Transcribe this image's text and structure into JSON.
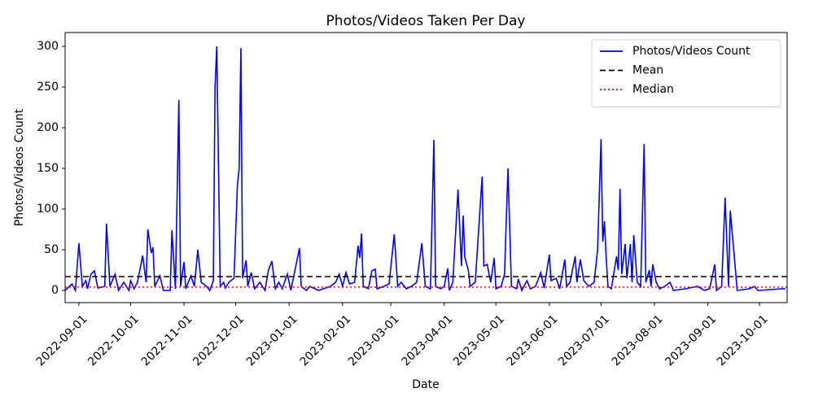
{
  "chart_data": {
    "type": "line",
    "title": "Photos/Videos Taken Per Day",
    "x_label": "Date",
    "y_label": "Photos/Videos Count",
    "xlim": [
      "2022-08-24",
      "2023-10-17"
    ],
    "xticks": [
      "2022-09-01",
      "2022-10-01",
      "2022-11-01",
      "2022-12-01",
      "2023-01-01",
      "2023-02-01",
      "2023-03-01",
      "2023-04-01",
      "2023-05-01",
      "2023-06-01",
      "2023-07-01",
      "2023-08-01",
      "2023-09-01",
      "2023-10-01"
    ],
    "ylim": [
      -15,
      317
    ],
    "yticks": [
      0,
      50,
      100,
      150,
      200,
      250,
      300
    ],
    "legend": "upper right",
    "x": [
      "2022-08-24",
      "2022-08-28",
      "2022-08-30",
      "2022-08-31",
      "2022-09-01",
      "2022-09-03",
      "2022-09-05",
      "2022-09-06",
      "2022-09-08",
      "2022-09-10",
      "2022-09-12",
      "2022-09-16",
      "2022-09-17",
      "2022-09-19",
      "2022-09-22",
      "2022-09-24",
      "2022-09-27",
      "2022-09-30",
      "2022-10-01",
      "2022-10-03",
      "2022-10-05",
      "2022-10-08",
      "2022-10-10",
      "2022-10-11",
      "2022-10-13",
      "2022-10-14",
      "2022-10-15",
      "2022-10-18",
      "2022-10-20",
      "2022-10-24",
      "2022-10-25",
      "2022-10-27",
      "2022-10-29",
      "2022-10-30",
      "2022-11-01",
      "2022-11-02",
      "2022-11-05",
      "2022-11-07",
      "2022-11-09",
      "2022-11-11",
      "2022-11-14",
      "2022-11-16",
      "2022-11-18",
      "2022-11-19",
      "2022-11-20",
      "2022-11-22",
      "2022-11-24",
      "2022-11-25",
      "2022-11-27",
      "2022-11-30",
      "2022-12-02",
      "2022-12-03",
      "2022-12-04",
      "2022-12-05",
      "2022-12-07",
      "2022-12-08",
      "2022-12-10",
      "2022-12-12",
      "2022-12-15",
      "2022-12-18",
      "2022-12-20",
      "2022-12-22",
      "2022-12-24",
      "2022-12-26",
      "2022-12-28",
      "2022-12-31",
      "2023-01-02",
      "2023-01-07",
      "2023-01-08",
      "2023-01-11",
      "2023-01-13",
      "2023-01-18",
      "2023-01-25",
      "2023-01-28",
      "2023-01-30",
      "2023-02-01",
      "2023-02-03",
      "2023-02-05",
      "2023-02-08",
      "2023-02-10",
      "2023-02-11",
      "2023-02-12",
      "2023-02-13",
      "2023-02-16",
      "2023-02-18",
      "2023-02-20",
      "2023-02-21",
      "2023-02-25",
      "2023-02-28",
      "2023-03-03",
      "2023-03-05",
      "2023-03-07",
      "2023-03-10",
      "2023-03-13",
      "2023-03-16",
      "2023-03-19",
      "2023-03-21",
      "2023-03-24",
      "2023-03-26",
      "2023-03-27",
      "2023-03-30",
      "2023-04-01",
      "2023-04-03",
      "2023-04-04",
      "2023-04-06",
      "2023-04-09",
      "2023-04-11",
      "2023-04-12",
      "2023-04-13",
      "2023-04-15",
      "2023-04-16",
      "2023-04-19",
      "2023-04-23",
      "2023-04-24",
      "2023-04-26",
      "2023-04-27",
      "2023-04-28",
      "2023-04-30",
      "2023-05-01",
      "2023-05-04",
      "2023-05-06",
      "2023-05-08",
      "2023-05-10",
      "2023-05-13",
      "2023-05-14",
      "2023-05-16",
      "2023-05-19",
      "2023-05-21",
      "2023-05-24",
      "2023-05-27",
      "2023-05-29",
      "2023-06-01",
      "2023-06-02",
      "2023-06-05",
      "2023-06-07",
      "2023-06-10",
      "2023-06-11",
      "2023-06-13",
      "2023-06-16",
      "2023-06-17",
      "2023-06-19",
      "2023-06-21",
      "2023-06-24",
      "2023-06-27",
      "2023-06-29",
      "2023-07-01",
      "2023-07-02",
      "2023-07-03",
      "2023-07-04",
      "2023-07-05",
      "2023-07-07",
      "2023-07-10",
      "2023-07-11",
      "2023-07-12",
      "2023-07-13",
      "2023-07-15",
      "2023-07-16",
      "2023-07-18",
      "2023-07-19",
      "2023-07-20",
      "2023-07-22",
      "2023-07-24",
      "2023-07-26",
      "2023-07-27",
      "2023-07-29",
      "2023-07-30",
      "2023-07-31",
      "2023-08-02",
      "2023-08-04",
      "2023-08-07",
      "2023-08-10",
      "2023-08-12",
      "2023-08-19",
      "2023-08-26",
      "2023-08-30",
      "2023-09-02",
      "2023-09-05",
      "2023-09-06",
      "2023-09-09",
      "2023-09-11",
      "2023-09-13",
      "2023-09-14",
      "2023-09-16",
      "2023-09-18",
      "2023-09-25",
      "2023-09-28",
      "2023-09-30",
      "2023-10-14",
      "2023-10-16"
    ],
    "series": [
      {
        "name": "Photos/Videos Count",
        "color": "#0000ff",
        "values": [
          0,
          8,
          0,
          30,
          58,
          5,
          12,
          2,
          20,
          24,
          3,
          5,
          82,
          5,
          20,
          0,
          10,
          0,
          12,
          2,
          10,
          43,
          10,
          75,
          46,
          53,
          5,
          18,
          0,
          0,
          74,
          2,
          234,
          5,
          35,
          2,
          18,
          5,
          50,
          10,
          5,
          0,
          12,
          250,
          300,
          5,
          10,
          3,
          10,
          15,
          130,
          150,
          298,
          15,
          37,
          5,
          22,
          2,
          10,
          0,
          25,
          36,
          2,
          10,
          2,
          20,
          0,
          52,
          5,
          0,
          5,
          0,
          5,
          10,
          20,
          5,
          22,
          8,
          10,
          55,
          40,
          70,
          5,
          2,
          24,
          26,
          2,
          5,
          8,
          69,
          5,
          10,
          2,
          5,
          10,
          58,
          5,
          2,
          185,
          5,
          2,
          5,
          27,
          0,
          10,
          124,
          30,
          92,
          40,
          25,
          5,
          10,
          140,
          30,
          32,
          20,
          10,
          40,
          2,
          5,
          20,
          150,
          5,
          2,
          14,
          0,
          12,
          2,
          5,
          22,
          3,
          44,
          12,
          15,
          2,
          38,
          5,
          10,
          42,
          10,
          38,
          12,
          5,
          10,
          50,
          186,
          60,
          85,
          40,
          5,
          2,
          42,
          25,
          125,
          20,
          57,
          15,
          57,
          10,
          68,
          10,
          5,
          180,
          10,
          25,
          5,
          32,
          10,
          2,
          5,
          10,
          0,
          2,
          5,
          0,
          2,
          32,
          0,
          5,
          114,
          5,
          98,
          50,
          0,
          2,
          5,
          0,
          2,
          2
        ]
      }
    ],
    "hlines": [
      {
        "name": "Mean",
        "value": 17,
        "color": "#000000",
        "style": "dashed"
      },
      {
        "name": "Median",
        "value": 4,
        "color": "#ff0000",
        "style": "dotted"
      }
    ]
  }
}
